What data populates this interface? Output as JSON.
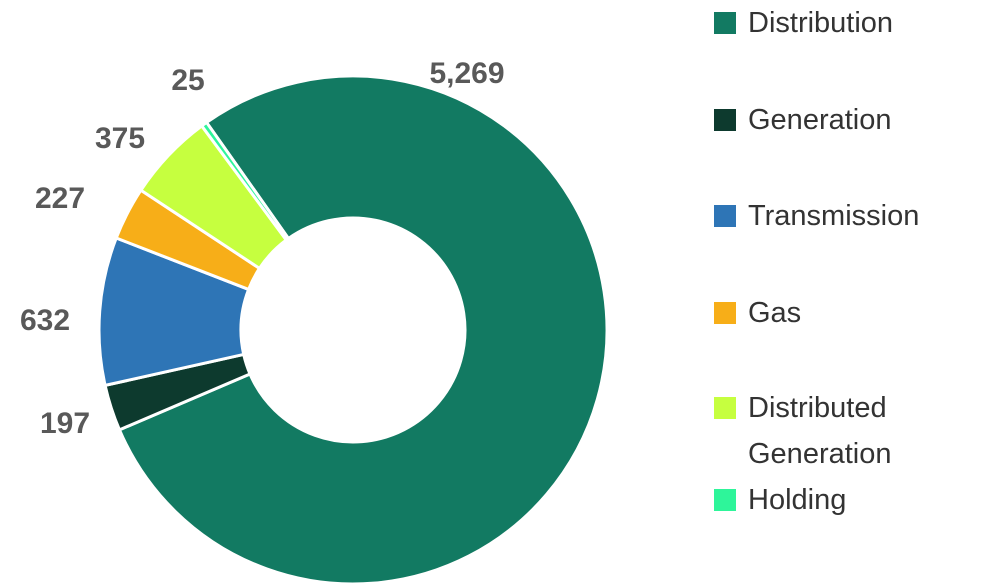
{
  "chart_data": {
    "type": "donut",
    "categories": [
      "Distribution",
      "Generation",
      "Transmission",
      "Gas",
      "Distributed Generation",
      "Holding"
    ],
    "values": [
      5269,
      197,
      632,
      227,
      375,
      25
    ],
    "value_labels": [
      "5,269",
      "197",
      "632",
      "227",
      "375",
      "25"
    ],
    "colors": [
      "#127a62",
      "#0d3a2e",
      "#2e75b6",
      "#f7ae18",
      "#c6ff3f",
      "#2ef59a"
    ]
  }
}
